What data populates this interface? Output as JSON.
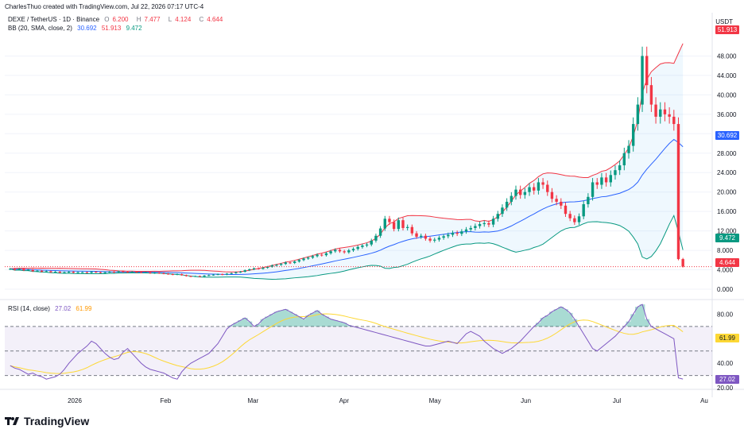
{
  "header": {
    "credit": "CharlesThuo created with TradingView.com, Jul 22, 2026 07:17 UTC-4"
  },
  "main_legend": {
    "symbol": "DEXE / TetherUS · 1D · Binance",
    "o_label": "O",
    "o": "6.200",
    "h_label": "H",
    "h": "7.477",
    "l_label": "L",
    "l": "4.124",
    "c_label": "C",
    "c": "4.644"
  },
  "bb_legend": {
    "name": "BB (20, SMA, close, 2)",
    "basis": "30.692",
    "upper": "51.913",
    "lower": "9.472"
  },
  "rsi_legend": {
    "name": "RSI (14, close)",
    "rsi": "27.02",
    "ma": "61.99"
  },
  "currency": "USDT",
  "price_badges": {
    "upper": "51.913",
    "basis": "30.692",
    "lower": "9.472",
    "last": "4.644"
  },
  "rsi_badges": {
    "ma": "61.99",
    "rsi": "27.02"
  },
  "colors": {
    "up": "#089981",
    "down": "#f23645",
    "basis": "#2962ff",
    "upper": "#f23645",
    "lower": "#089981",
    "rsi": "#7e57c2",
    "rsi_ma": "#fdd835"
  },
  "logo_text": "TradingView",
  "chart_data": [
    {
      "type": "candlestick",
      "title": "DEXE / TetherUS · 1D · Binance",
      "ylabel": "USDT",
      "ylim": [
        0,
        52
      ],
      "y_ticks": [
        "0.000",
        "4.000",
        "8.000",
        "12.000",
        "16.000",
        "20.000",
        "24.000",
        "28.000",
        "32.000",
        "36.000",
        "40.000",
        "44.000",
        "48.000"
      ],
      "x_ticks": [
        "2026",
        "Feb",
        "Mar",
        "Apr",
        "May",
        "Jun",
        "Jul",
        "Au"
      ],
      "close": [
        4.2,
        4.0,
        4.2,
        3.9,
        4.0,
        3.7,
        3.8,
        3.6,
        3.7,
        3.5,
        3.6,
        3.4,
        3.5,
        3.6,
        3.4,
        3.5,
        3.5,
        3.4,
        3.6,
        3.5,
        3.4,
        3.5,
        3.6,
        3.5,
        3.7,
        3.6,
        3.5,
        3.6,
        3.5,
        3.4,
        3.5,
        3.3,
        3.4,
        3.3,
        3.2,
        3.1,
        3.0,
        3.1,
        2.9,
        2.7,
        2.6,
        2.7,
        2.6,
        2.8,
        2.9,
        3.0,
        3.1,
        3.0,
        3.2,
        3.3,
        3.5,
        3.6,
        3.9,
        4.1,
        4.3,
        4.2,
        4.4,
        4.6,
        4.9,
        5.0,
        5.2,
        5.5,
        5.4,
        5.7,
        6.0,
        6.3,
        6.5,
        6.8,
        7.1,
        7.0,
        7.4,
        7.8,
        8.1,
        7.8,
        7.6,
        8.0,
        8.3,
        8.7,
        9.0,
        9.2,
        10.0,
        11.0,
        12.5,
        14.5,
        13.8,
        12.4,
        14.2,
        12.6,
        12.8,
        11.5,
        10.8,
        11.0,
        10.4,
        10.0,
        10.2,
        10.6,
        10.9,
        11.2,
        11.6,
        11.4,
        11.9,
        12.3,
        12.6,
        13.0,
        13.4,
        13.6,
        13.3,
        14.5,
        15.5,
        16.8,
        18.0,
        19.2,
        20.5,
        19.4,
        20.0,
        21.0,
        20.3,
        22.0,
        21.5,
        20.0,
        18.6,
        18.0,
        17.2,
        15.5,
        14.6,
        13.8,
        15.0,
        17.5,
        19.0,
        22.0,
        21.5,
        23.0,
        22.0,
        23.5,
        24.5,
        25.5,
        28.0,
        29.5,
        34.0,
        38.0,
        48.0,
        42.0,
        38.0,
        35.5,
        37.0,
        36.0,
        35.5,
        34.0,
        6.2,
        4.644
      ]
    },
    {
      "type": "line",
      "title": "RSI (14, close)",
      "ylim": [
        20,
        90
      ],
      "y_ticks": [
        "20.00",
        "40.00",
        "80.00"
      ],
      "series": [
        {
          "name": "RSI",
          "values": [
            38,
            36,
            35,
            33,
            31,
            32,
            30,
            29,
            27,
            28,
            29,
            31,
            35,
            40,
            44,
            48,
            51,
            54,
            58,
            56,
            52,
            48,
            45,
            43,
            44,
            49,
            52,
            48,
            44,
            40,
            37,
            35,
            34,
            33,
            32,
            30,
            28,
            27,
            33,
            37,
            40,
            42,
            44,
            46,
            48,
            52,
            56,
            62,
            68,
            71,
            73,
            75,
            77,
            74,
            70,
            72,
            76,
            78,
            80,
            82,
            83,
            84,
            82,
            80,
            78,
            76,
            79,
            81,
            83,
            80,
            78,
            76,
            75,
            74,
            73,
            71,
            70,
            69,
            68,
            67,
            66,
            65,
            64,
            63,
            62,
            61,
            60,
            59,
            58,
            57,
            56,
            55,
            54,
            54,
            55,
            56,
            57,
            58,
            57,
            56,
            60,
            64,
            66,
            64,
            62,
            58,
            55,
            52,
            50,
            48,
            50,
            52,
            55,
            58,
            62,
            66,
            70,
            73,
            77,
            79,
            82,
            84,
            86,
            84,
            81,
            76,
            70,
            64,
            58,
            52,
            50,
            53,
            56,
            59,
            62,
            66,
            70,
            74,
            80,
            86,
            88,
            76,
            70,
            68,
            66,
            64,
            62,
            60,
            28,
            27.02
          ]
        }
      ]
    }
  ]
}
